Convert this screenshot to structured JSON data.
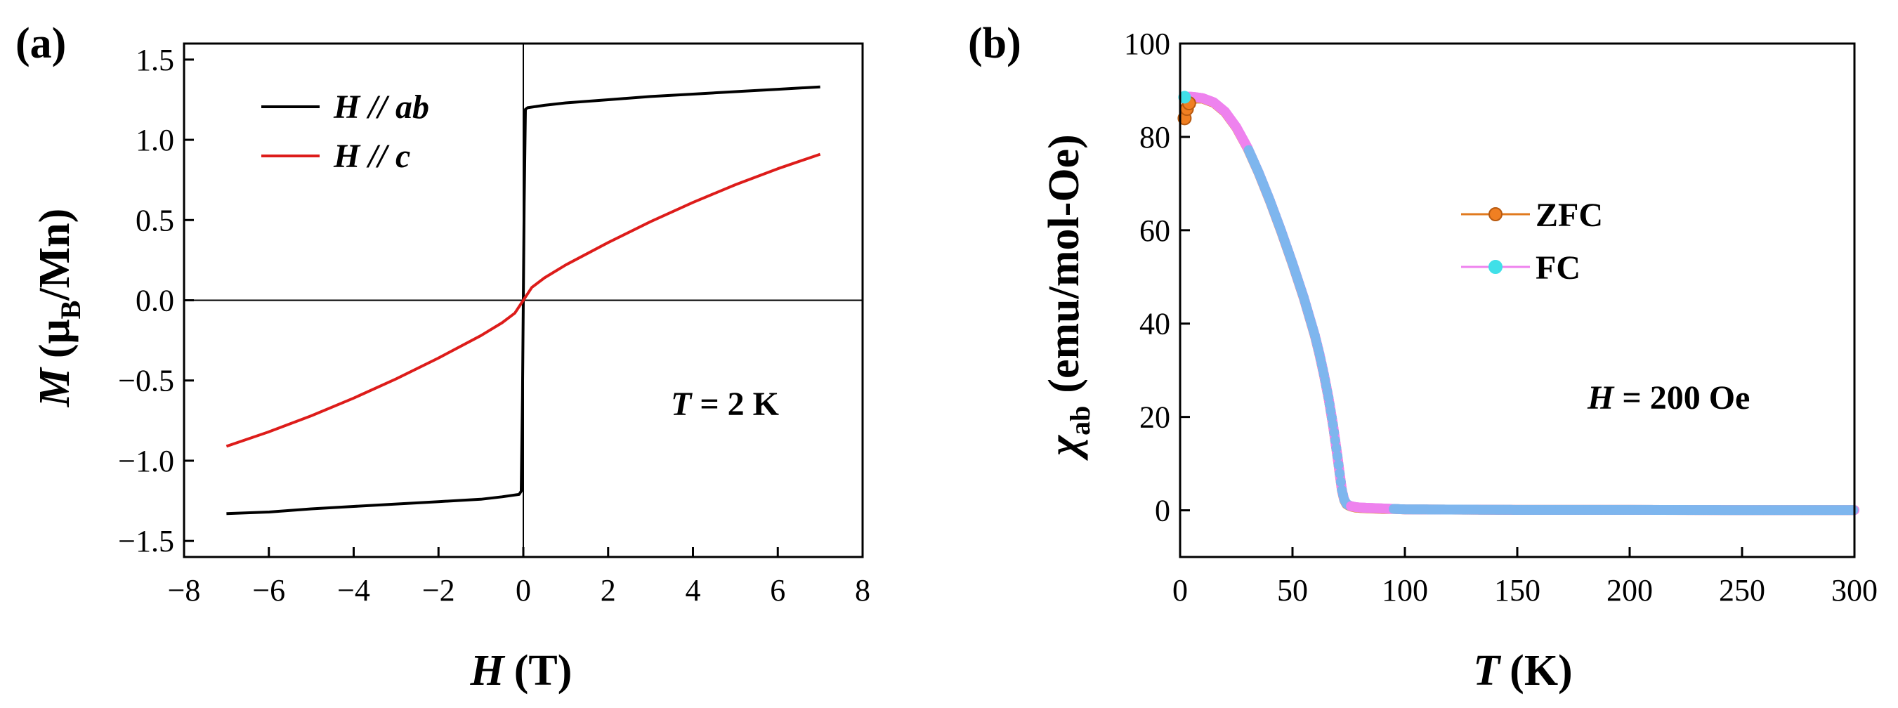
{
  "chart_data": [
    {
      "type": "line",
      "panel_label": "(a)",
      "xlabel": {
        "var": "H",
        "unit": "(T)"
      },
      "ylabel": {
        "var": "M",
        "open": "(μ",
        "sub": "B",
        "close": "/Mn)"
      },
      "xlim": [
        -8,
        8
      ],
      "ylim": [
        -1.6,
        1.6
      ],
      "xticks": [
        -8,
        -6,
        -4,
        -2,
        0,
        2,
        4,
        6,
        8
      ],
      "xtick_labels": [
        "−8",
        "−6",
        "−4",
        "−2",
        "0",
        "2",
        "4",
        "6",
        "8"
      ],
      "yticks": [
        -1.5,
        -1.0,
        -0.5,
        0.0,
        0.5,
        1.0,
        1.5
      ],
      "ytick_labels": [
        "−1.5",
        "−1.0",
        "−0.5",
        "0.0",
        "0.5",
        "1.0",
        "1.5"
      ],
      "annotation": {
        "var": "T",
        "text": " = 2 K"
      },
      "series": [
        {
          "name": "H // ab",
          "label_var": "H",
          "label_rest": " // ",
          "label_it": "ab",
          "color": "#000000",
          "x": [
            -7,
            -6,
            -5,
            -4,
            -3,
            -2,
            -1,
            -0.5,
            -0.1,
            -0.05,
            -0.02,
            0,
            0.02,
            0.05,
            0.1,
            0.5,
            1,
            2,
            3,
            4,
            5,
            6,
            7
          ],
          "y": [
            -1.33,
            -1.32,
            -1.3,
            -1.285,
            -1.27,
            -1.255,
            -1.24,
            -1.225,
            -1.21,
            -1.19,
            -0.6,
            0,
            0.6,
            1.19,
            1.2,
            1.215,
            1.23,
            1.25,
            1.27,
            1.285,
            1.3,
            1.315,
            1.33
          ]
        },
        {
          "name": "H // c",
          "label_var": "H",
          "label_rest": " // ",
          "label_it": "c",
          "color": "#dd1c1a",
          "x": [
            -7,
            -6,
            -5,
            -4,
            -3,
            -2,
            -1,
            -0.5,
            -0.2,
            0,
            0.2,
            0.5,
            1,
            2,
            3,
            4,
            5,
            6,
            7
          ],
          "y": [
            -0.91,
            -0.82,
            -0.72,
            -0.61,
            -0.49,
            -0.36,
            -0.22,
            -0.14,
            -0.08,
            0,
            0.08,
            0.14,
            0.22,
            0.36,
            0.49,
            0.61,
            0.72,
            0.82,
            0.91
          ]
        }
      ]
    },
    {
      "type": "scatter",
      "panel_label": "(b)",
      "xlabel": {
        "var": "T",
        "unit": "(K)"
      },
      "ylabel": {
        "var": "χ",
        "sub": "ab",
        "rest": "(emu/mol-Oe)"
      },
      "xlim": [
        0,
        300
      ],
      "ylim": [
        -10,
        100
      ],
      "xticks": [
        0,
        50,
        100,
        150,
        200,
        250,
        300
      ],
      "xtick_labels": [
        "0",
        "50",
        "100",
        "150",
        "200",
        "250",
        "300"
      ],
      "yticks": [
        0,
        20,
        40,
        60,
        80,
        100
      ],
      "ytick_labels": [
        "0",
        "20",
        "40",
        "60",
        "80",
        "100"
      ],
      "annotation": {
        "var": "H",
        "text": " = 200 Oe"
      },
      "series": [
        {
          "name": "ZFC",
          "color": "#f07f22",
          "line_color": "#e07a1e",
          "x": [
            2,
            3,
            4,
            5,
            7,
            10,
            15,
            20,
            25,
            30,
            35,
            40,
            45,
            50,
            55,
            60,
            62,
            64,
            66,
            68,
            70,
            71,
            72,
            73,
            74,
            75,
            76,
            78,
            80,
            85,
            90,
            95,
            100,
            150,
            200,
            250,
            300
          ],
          "y": [
            84,
            86,
            87.2,
            87.8,
            88.2,
            88.2,
            87.3,
            85.3,
            82,
            77.6,
            72.2,
            66.2,
            59.7,
            52.8,
            45.5,
            37.3,
            33.4,
            29,
            24.1,
            18.3,
            11.5,
            7.8,
            4.2,
            2.2,
            1.3,
            1.0,
            0.8,
            0.6,
            0.5,
            0.4,
            0.3,
            0.3,
            0.2,
            0.1,
            0.1,
            0.05,
            0.05
          ]
        },
        {
          "name": "FC",
          "color": "#40e0e8",
          "line_color": "#ee82ee",
          "x": [
            2,
            3,
            4,
            5,
            7,
            10,
            15,
            20,
            25,
            30,
            35,
            40,
            45,
            50,
            55,
            60,
            62,
            64,
            66,
            68,
            70,
            71,
            72,
            73,
            74,
            75,
            76,
            78,
            80,
            85,
            90,
            95,
            100,
            150,
            200,
            250,
            300
          ],
          "y": [
            88.5,
            88.6,
            88.6,
            88.6,
            88.5,
            88.3,
            87.4,
            85.4,
            82.1,
            77.7,
            72.3,
            66.3,
            59.8,
            52.9,
            45.6,
            37.4,
            33.5,
            29.1,
            24.2,
            18.4,
            11.6,
            7.9,
            4.3,
            2.3,
            1.4,
            1.1,
            0.9,
            0.7,
            0.6,
            0.5,
            0.4,
            0.3,
            0.2,
            0.1,
            0.1,
            0.05,
            0.05
          ]
        }
      ]
    }
  ]
}
